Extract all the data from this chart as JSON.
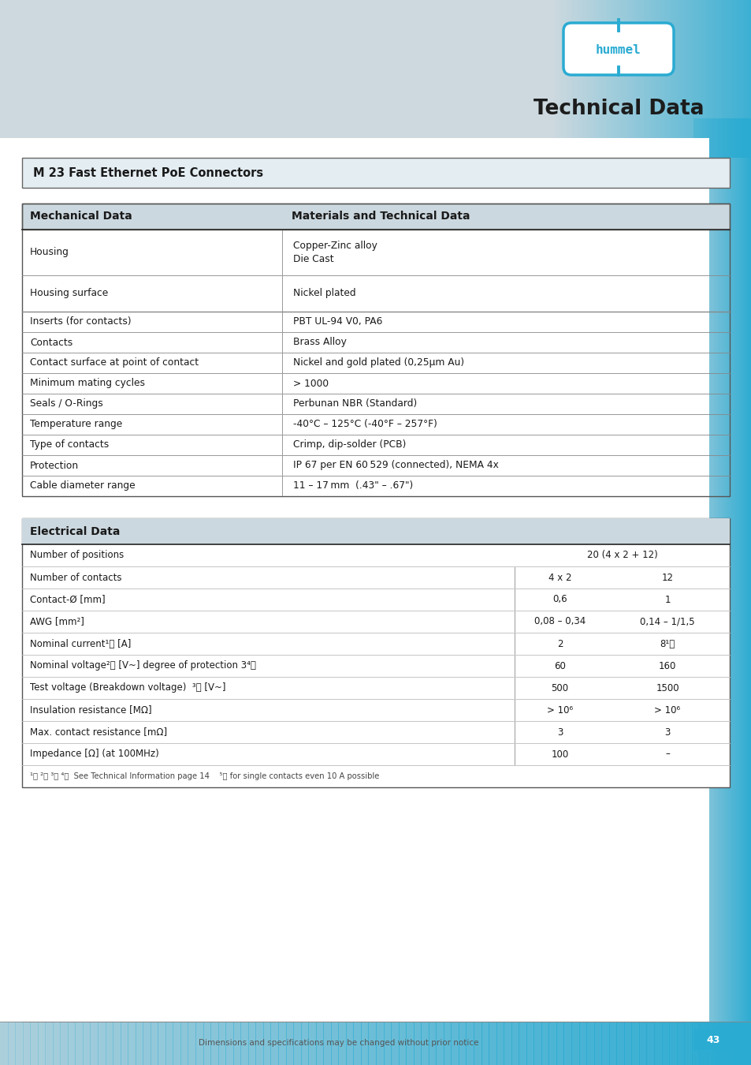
{
  "bg_header_color": "#cdd9df",
  "bg_white": "#ffffff",
  "accent_blue": "#2aabd2",
  "title_text": "Technical Data",
  "section_title": "M 23 Fast Ethernet PoE Connectors",
  "mech_header_left": "Mechanical Data",
  "mech_header_right": "Materials and Technical Data",
  "mech_rows": [
    [
      "Housing",
      "Copper-Zinc alloy\nDie Cast",
      58
    ],
    [
      "Housing surface",
      "Nickel plated",
      46
    ],
    [
      "Inserts (for contacts)",
      "PBT UL-94 V0, PA6",
      26
    ],
    [
      "Contacts",
      "Brass Alloy",
      26
    ],
    [
      "Contact surface at point of contact",
      "Nickel and gold plated (0,25μm Au)",
      26
    ],
    [
      "Minimum mating cycles",
      "> 1000",
      26
    ],
    [
      "Seals / O-Rings",
      "Perbunan NBR (Standard)",
      26
    ],
    [
      "Temperature range",
      "-40°C – 125°C (-40°F – 257°F)",
      26
    ],
    [
      "Type of contacts",
      "Crimp, dip-solder (PCB)",
      26
    ],
    [
      "Protection",
      "IP 67 per EN 60 529 (connected), NEMA 4x",
      26
    ],
    [
      "Cable diameter range",
      "11 – 17 mm  (.43\" – .67\")",
      26
    ]
  ],
  "elec_header": "Electrical Data",
  "elec_rows": [
    [
      "Number of positions",
      "20 (4 x 2 + 12)",
      "",
      true
    ],
    [
      "Number of contacts",
      "4 x 2",
      "12",
      false
    ],
    [
      "Contact-Ø [mm]",
      "0,6",
      "1",
      false
    ],
    [
      "AWG [mm²]",
      "0,08 – 0,34",
      "0,14 – 1/1,5",
      false
    ],
    [
      "Nominal current¹⧦ [A]",
      "2",
      "8¹⧦",
      false
    ],
    [
      "Nominal voltage²⧦ [V~] degree of protection 3⁴⧦",
      "60",
      "160",
      false
    ],
    [
      "Test voltage (Breakdown voltage)  ³⧦ [V~]",
      "500",
      "1500",
      false
    ],
    [
      "Insulation resistance [MΩ]",
      "> 10⁶",
      "> 10⁶",
      false
    ],
    [
      "Max. contact resistance [mΩ]",
      "3",
      "3",
      false
    ],
    [
      "Impedance [Ω] (at 100MHz)",
      "100",
      "–",
      false
    ]
  ],
  "footnote": "¹⧦ ²⧦ ³⧦ ⁴⧦  See Technical Information page 14    ⁵⧦ for single contacts even 10 A possible",
  "footer_text": "Dimensions and specifications may be changed without prior notice",
  "page_num": "43",
  "logo_text": "hummel"
}
